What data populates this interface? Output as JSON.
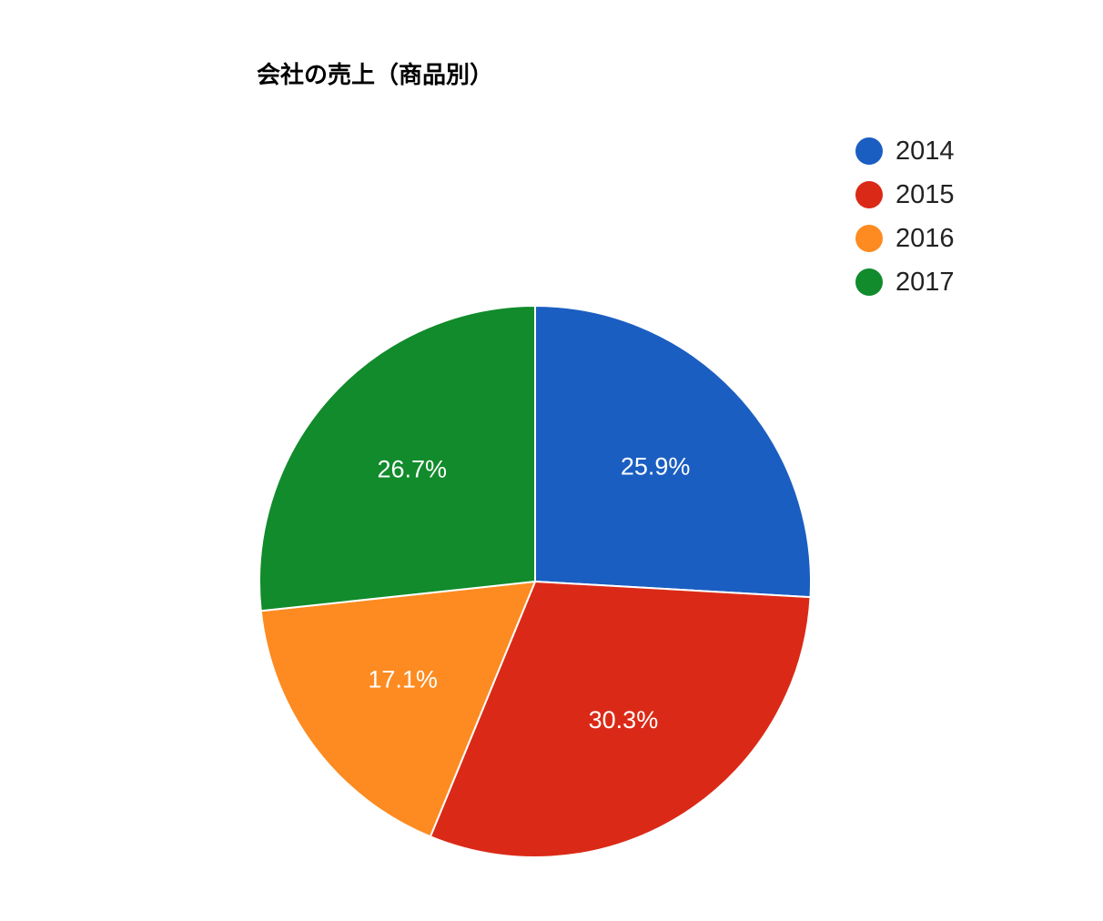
{
  "chart_data": {
    "type": "pie",
    "title": "会社の売上（商品別）",
    "slices": [
      {
        "label": "2014",
        "value": 25.9,
        "value_label": "25.9%",
        "color": "#1b5ec2"
      },
      {
        "label": "2015",
        "value": 30.3,
        "value_label": "30.3%",
        "color": "#da2a17"
      },
      {
        "label": "2016",
        "value": 17.1,
        "value_label": "17.1%",
        "color": "#fd8b21"
      },
      {
        "label": "2017",
        "value": 26.7,
        "value_label": "26.7%",
        "color": "#118b2b"
      }
    ],
    "legend_position": "right"
  }
}
